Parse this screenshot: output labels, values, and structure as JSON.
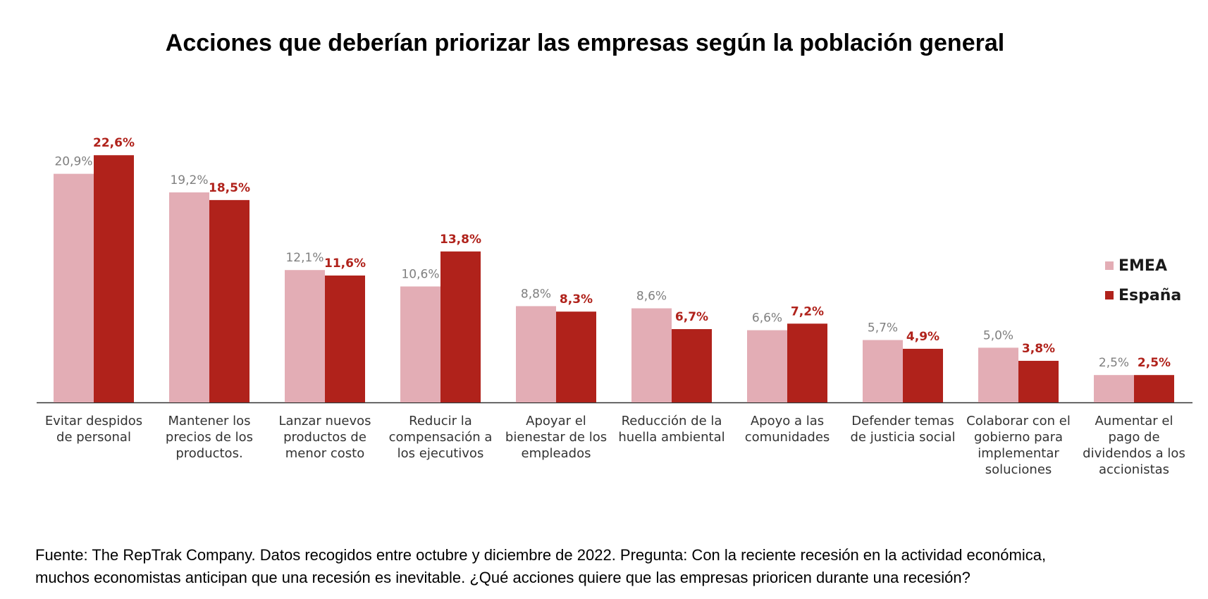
{
  "colors": {
    "emea": "#e3adb5",
    "spain": "#b0221b",
    "emea_label": "#7f7f7f",
    "spain_label": "#b0221b",
    "axis": "#333333"
  },
  "chart_data": {
    "type": "bar",
    "title": "Acciones que deberían priorizar las empresas según la población general",
    "categories": [
      [
        "Evitar despidos",
        "de personal"
      ],
      [
        "Mantener los",
        "precios de los",
        "productos."
      ],
      [
        "Lanzar nuevos",
        "productos de",
        "menor costo"
      ],
      [
        "Reducir la",
        "compensación a",
        "los ejecutivos"
      ],
      [
        "Apoyar el",
        "bienestar de los",
        "empleados"
      ],
      [
        "Reducción de la",
        "huella ambiental"
      ],
      [
        "Apoyo a las",
        "comunidades"
      ],
      [
        "Defender temas",
        "de justicia social"
      ],
      [
        "Colaborar con el",
        "gobierno para",
        "implementar",
        "soluciones"
      ],
      [
        "Aumentar el",
        "pago de",
        "dividendos a los",
        "accionistas"
      ]
    ],
    "series": [
      {
        "name": "EMEA",
        "values": [
          20.9,
          19.2,
          12.1,
          10.6,
          8.8,
          8.6,
          6.6,
          5.7,
          5.0,
          2.5
        ],
        "labels": [
          "20,9%",
          "19,2%",
          "12,1%",
          "10,6%",
          "8,8%",
          "8,6%",
          "6,6%",
          "5,7%",
          "5,0%",
          "2,5%"
        ]
      },
      {
        "name": "España",
        "values": [
          22.6,
          18.5,
          11.6,
          13.8,
          8.3,
          6.7,
          7.2,
          4.9,
          3.8,
          2.5
        ],
        "labels": [
          "22,6%",
          "18,5%",
          "11,6%",
          "13,8%",
          "8,3%",
          "6,7%",
          "7,2%",
          "4,9%",
          "3,8%",
          "2,5%"
        ]
      }
    ],
    "xlabel": "",
    "ylabel": "",
    "ylim": [
      0,
      25
    ],
    "grid": false,
    "legend": "right"
  },
  "legend": {
    "emea": "EMEA",
    "spain": "España"
  },
  "source": {
    "line1": "Fuente: The RepTrak Company. Datos recogidos entre octubre y diciembre de 2022. Pregunta: Con la reciente recesión en la actividad económica,",
    "line2": "muchos economistas anticipan que una recesión es inevitable. ¿Qué acciones quiere que las empresas prioricen durante una recesión?"
  }
}
